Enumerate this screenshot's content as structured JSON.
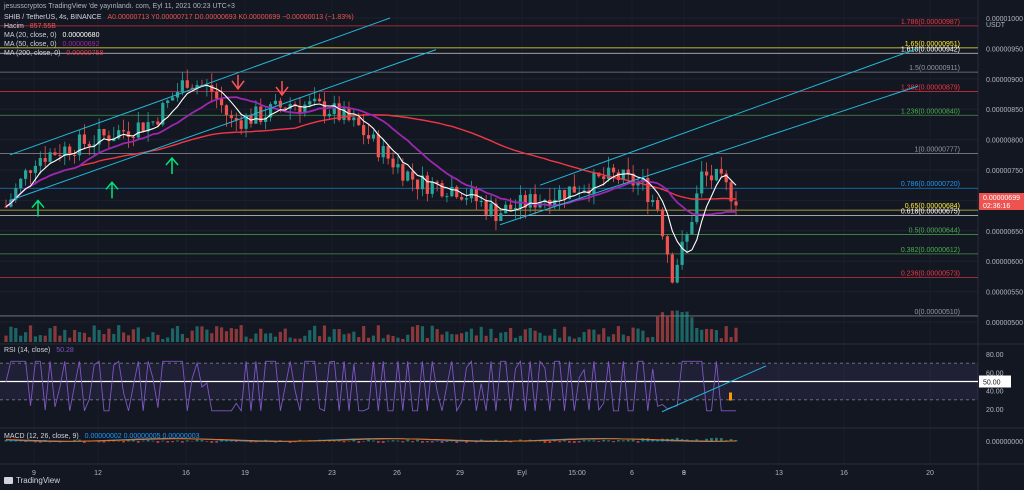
{
  "header": {
    "published": "jesusscryptos TradingView 'de yayınlandı. com, Eyl 11, 2021 00:23 UTC+3",
    "symbol": "SHIB / TetherUS, 4s, BINANCE",
    "ohlc": "A0.00000713  Y0.00000717  D0.00000693  K0.00000699  −0.00000013 (−1.83%)",
    "volume_label": "Hacim",
    "volume_value": "857.55B",
    "ma20_label": "MA (20, close, 0)",
    "ma20_value": "0.00000680",
    "ma50_label": "MA (50, close, 0)",
    "ma50_value": "0.00000692",
    "ma200_label": "MA (200, close, 0)",
    "ma200_value": "0.00000758",
    "rsi_label": "RSI (14, close)",
    "rsi_value": "50.28",
    "macd_label": "MACD (12, 26, close, 9)",
    "macd_values": "0.00000002  0.00000005  0.00000003"
  },
  "currency": "USDT",
  "price_tag": {
    "price": "0.00000699",
    "countdown": "02:36:16"
  },
  "rsi_tag": "50.00",
  "branding": "TradingView",
  "colors": {
    "up": "#26a69a",
    "down": "#ef5350",
    "ma20": "#ffffff",
    "ma50": "#9c27b0",
    "ma200": "#f23645",
    "channel": "#22b7d8",
    "rsi": "#7e57c2",
    "bg": "#131722"
  },
  "chart_data": {
    "type": "candlestick",
    "y_axis": {
      "min": 4.9e-06,
      "max": 1e-05,
      "ticks": [
        "0.00000500",
        "0.00000550",
        "0.00000600",
        "0.00000650",
        "0.00000700",
        "0.00000750",
        "0.00000800",
        "0.00000850",
        "0.00000900",
        "0.00000950",
        "0.00001000"
      ]
    },
    "x_labels": [
      "9",
      "12",
      "16",
      "19",
      "23",
      "26",
      "29",
      "Eyl",
      "15:00",
      "6",
      "8",
      "9",
      "13",
      "16",
      "20"
    ],
    "fibonacci": [
      {
        "label": "1.786",
        "value": "0.00000987",
        "color": "#f23645"
      },
      {
        "label": "1.65",
        "value": "0.00000951",
        "color": "#ffeb3b"
      },
      {
        "label": "1.618",
        "value": "0.00000942",
        "color": "#ffffff"
      },
      {
        "label": "1.5",
        "value": "0.00000911",
        "color": "#9598a1"
      },
      {
        "label": "1.382",
        "value": "0.00000879",
        "color": "#f23645"
      },
      {
        "label": "1.236",
        "value": "0.00000840",
        "color": "#4caf50"
      },
      {
        "label": "1",
        "value": "0.00000777",
        "color": "#9598a1"
      },
      {
        "label": "0.786",
        "value": "0.00000720",
        "color": "#2196f3"
      },
      {
        "label": "0.65",
        "value": "0.00000684",
        "color": "#ffeb3b"
      },
      {
        "label": "0.618",
        "value": "0.00000675",
        "color": "#ffffff"
      },
      {
        "label": "0.5",
        "value": "0.00000644",
        "color": "#4caf50"
      },
      {
        "label": "0.382",
        "value": "0.00000612",
        "color": "#4caf50"
      },
      {
        "label": "0.236",
        "value": "0.00000573",
        "color": "#f23645"
      },
      {
        "label": "0",
        "value": "0.00000510",
        "color": "#9598a1"
      }
    ],
    "rsi": {
      "ticks": [
        "80.00",
        "60.00",
        "40.00",
        "20.00"
      ],
      "value": 50.28
    },
    "macd": {
      "ticks": [
        "0.00000000"
      ]
    }
  }
}
